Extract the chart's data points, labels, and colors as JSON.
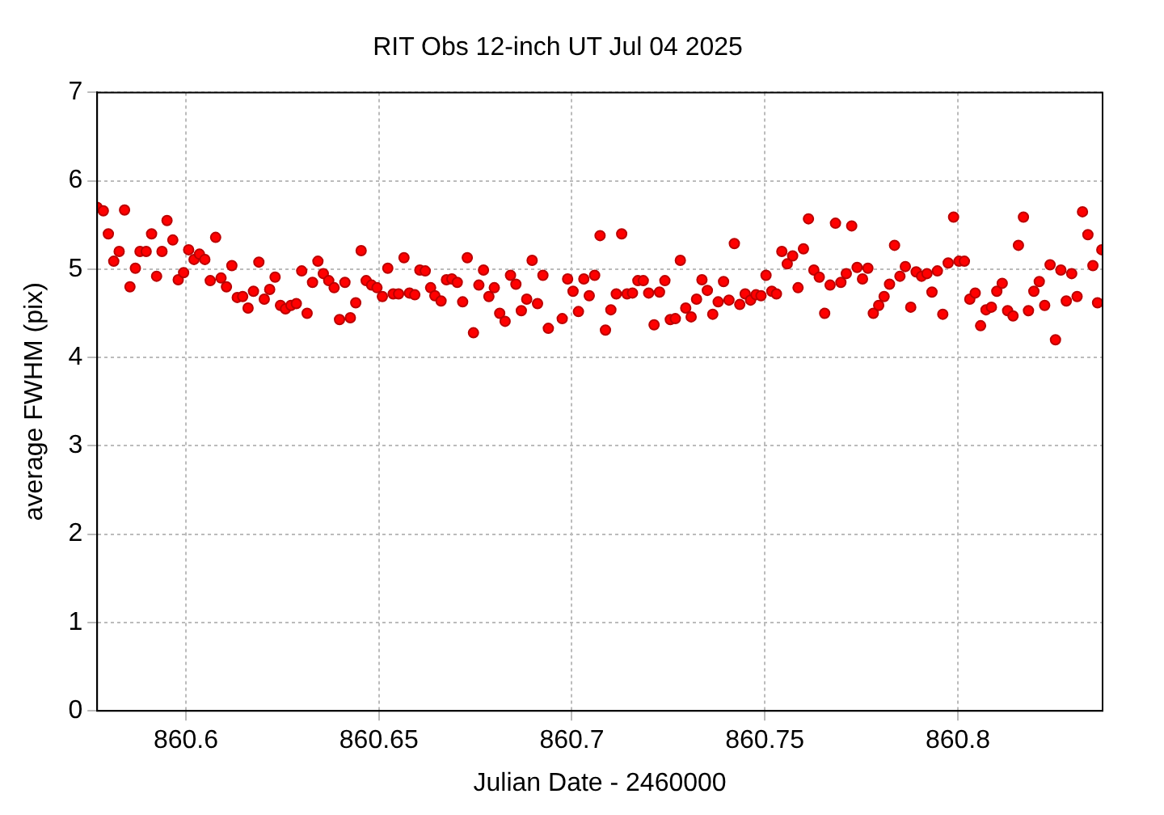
{
  "chart_data": {
    "type": "scatter",
    "title": "RIT Obs 12-inch UT Jul 04 2025",
    "xlabel": "Julian Date - 2460000",
    "ylabel": "average FWHM (pix)",
    "xlim": [
      860.577,
      860.8375
    ],
    "xticks": [
      860.6,
      860.65,
      860.7,
      860.75,
      860.8
    ],
    "ylim": [
      0,
      7
    ],
    "yticks": [
      0,
      1,
      2,
      3,
      4,
      5,
      6,
      7
    ],
    "grid": true,
    "marker": "circle",
    "legend": false,
    "series": [
      {
        "color": "#ff0000",
        "x": [
          860.577,
          860.5786,
          860.5799,
          860.5813,
          860.5827,
          860.5841,
          860.5855,
          860.5869,
          860.5881,
          860.5897,
          860.5911,
          860.5924,
          860.5938,
          860.5951,
          860.5966,
          860.598,
          860.5994,
          860.6007,
          860.6021,
          860.6035,
          860.6049,
          860.6063,
          860.6077,
          860.6091,
          860.6105,
          860.6119,
          860.6133,
          860.6147,
          860.6161,
          860.6175,
          860.6189,
          860.6203,
          860.6217,
          860.6231,
          860.6245,
          860.6258,
          860.6272,
          860.6286,
          860.63,
          860.6314,
          860.6328,
          860.6342,
          860.6356,
          860.637,
          860.6384,
          860.6398,
          860.6412,
          860.6426,
          860.644,
          860.6454,
          860.6467,
          860.6481,
          860.6495,
          860.6509,
          860.6523,
          860.6537,
          860.6551,
          860.6565,
          860.6579,
          860.6593,
          860.6606,
          860.662,
          860.6634,
          860.6645,
          860.6661,
          860.6675,
          860.6689,
          860.6703,
          860.6717,
          860.6729,
          860.6745,
          860.6759,
          860.6771,
          860.6785,
          860.6799,
          860.6813,
          860.6827,
          860.6841,
          860.6855,
          860.6869,
          860.6883,
          860.6897,
          860.6911,
          860.6925,
          860.6939,
          860.6975,
          860.6989,
          860.7003,
          860.7017,
          860.7031,
          860.7045,
          860.7059,
          860.7073,
          860.7087,
          860.7101,
          860.7115,
          860.7129,
          860.7143,
          860.7157,
          860.7171,
          860.7185,
          860.7199,
          860.7213,
          860.7227,
          860.7241,
          860.7255,
          860.7268,
          860.7281,
          860.7295,
          860.7309,
          860.7323,
          860.7337,
          860.7351,
          860.7365,
          860.7379,
          860.7393,
          860.7407,
          860.7421,
          860.7435,
          860.7449,
          860.7463,
          860.7477,
          860.749,
          860.7503,
          860.7518,
          860.753,
          860.7544,
          860.7558,
          860.7572,
          860.7586,
          860.76,
          860.7613,
          860.7627,
          860.7641,
          860.7655,
          860.7669,
          860.7683,
          860.7697,
          860.7711,
          860.7725,
          860.7739,
          860.7753,
          860.7767,
          860.7781,
          860.7795,
          860.7809,
          860.7823,
          860.7836,
          860.785,
          860.7864,
          860.7878,
          860.7892,
          860.7906,
          860.792,
          860.7933,
          860.7947,
          860.7961,
          860.7975,
          860.7989,
          860.8003,
          860.8017,
          860.8031,
          860.8045,
          860.8059,
          860.8073,
          860.8087,
          860.8101,
          860.8115,
          860.8129,
          860.8143,
          860.8157,
          860.817,
          860.8183,
          860.8197,
          860.8211,
          860.8225,
          860.8239,
          860.8253,
          860.8267,
          860.8281,
          860.8295,
          860.8309,
          860.8323,
          860.8337,
          860.835,
          860.8362,
          860.8373
        ],
        "values": [
          5.7,
          5.66,
          5.4,
          5.09,
          5.2,
          5.67,
          4.8,
          5.01,
          5.2,
          5.2,
          5.4,
          4.92,
          5.2,
          5.55,
          5.33,
          4.88,
          4.96,
          5.22,
          5.11,
          5.17,
          5.11,
          4.87,
          5.36,
          4.9,
          4.8,
          5.04,
          4.68,
          4.69,
          4.56,
          4.75,
          5.08,
          4.66,
          4.77,
          4.91,
          4.59,
          4.55,
          4.59,
          4.61,
          4.98,
          4.5,
          4.85,
          5.09,
          4.95,
          4.87,
          4.79,
          4.43,
          4.85,
          4.45,
          4.62,
          5.21,
          4.87,
          4.82,
          4.79,
          4.69,
          5.01,
          4.72,
          4.72,
          5.13,
          4.73,
          4.71,
          4.99,
          4.98,
          4.79,
          4.7,
          4.64,
          4.88,
          4.89,
          4.85,
          4.63,
          5.13,
          4.28,
          4.82,
          4.99,
          4.69,
          4.79,
          4.5,
          4.41,
          4.93,
          4.83,
          4.53,
          4.66,
          5.1,
          4.61,
          4.93,
          4.33,
          4.44,
          4.89,
          4.75,
          4.52,
          4.89,
          4.7,
          4.93,
          5.38,
          4.31,
          4.54,
          4.72,
          5.4,
          4.72,
          4.73,
          4.87,
          4.87,
          4.73,
          4.37,
          4.74,
          4.87,
          4.43,
          4.44,
          5.1,
          4.56,
          4.46,
          4.66,
          4.88,
          4.76,
          4.49,
          4.63,
          4.86,
          4.65,
          5.29,
          4.6,
          4.72,
          4.65,
          4.71,
          4.7,
          4.93,
          4.75,
          4.72,
          5.2,
          5.06,
          5.15,
          4.79,
          5.23,
          5.57,
          4.99,
          4.91,
          4.5,
          4.82,
          5.52,
          4.85,
          4.95,
          5.49,
          5.02,
          4.89,
          5.01,
          4.5,
          4.59,
          4.69,
          4.83,
          5.27,
          4.92,
          5.03,
          4.57,
          4.97,
          4.92,
          4.95,
          4.74,
          4.98,
          4.49,
          5.07,
          5.59,
          5.09,
          5.09,
          4.66,
          4.73,
          4.36,
          4.54,
          4.57,
          4.75,
          4.84,
          4.53,
          4.47,
          5.27,
          5.59,
          4.53,
          4.75,
          4.86,
          4.59,
          5.05,
          4.2,
          4.99,
          4.64,
          4.95,
          4.69,
          5.65,
          5.39,
          5.04,
          4.62,
          5.22
        ]
      }
    ]
  }
}
